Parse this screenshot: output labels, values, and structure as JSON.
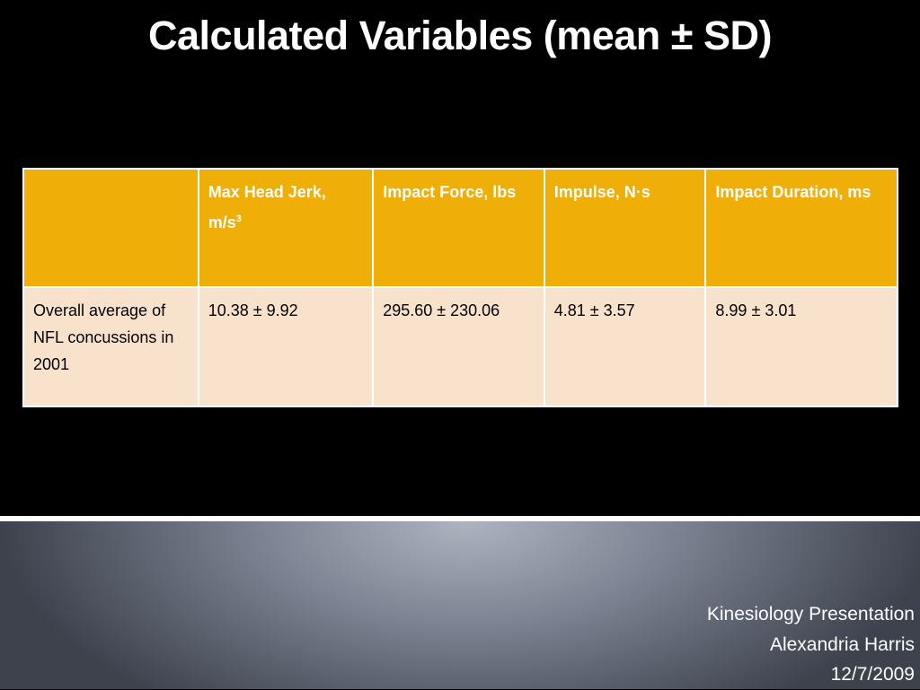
{
  "title": "Calculated Variables (mean ± SD)",
  "table": {
    "header": [
      {
        "text": "Max Head Jerk, m/s",
        "sup": "3"
      },
      {
        "text": "Impact Force, lbs"
      },
      {
        "text": "Impulse, N·s"
      },
      {
        "text": "Impact Duration, ms"
      }
    ],
    "rows": [
      [
        "Overall average of NFL concussions in 2001",
        "10.38 ± 9.92",
        "295.60 ± 230.06",
        "4.81 ± 3.57",
        "8.99 ± 3.01"
      ]
    ]
  },
  "footer": [
    "Kinesiology Presentation",
    "Alexandria Harris",
    "12/7/2009"
  ]
}
